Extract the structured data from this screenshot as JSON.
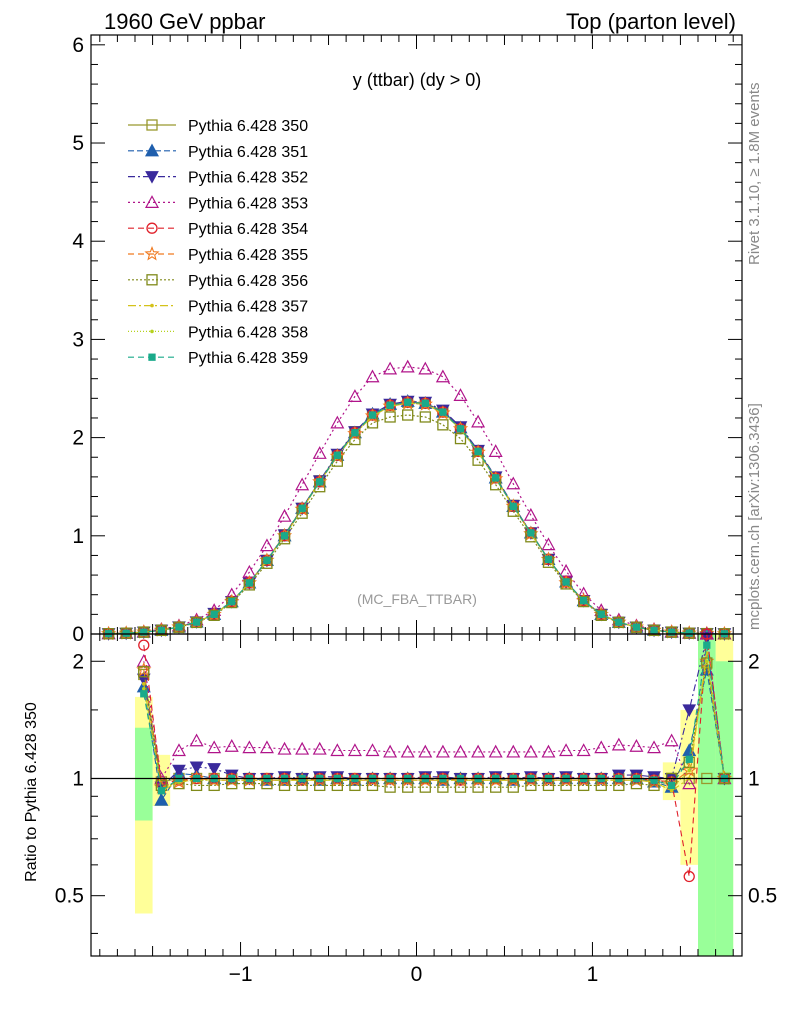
{
  "header": {
    "left": "1960 GeV ppbar",
    "right": "Top (parton level)"
  },
  "side_labels": {
    "rivet": "Rivet 3.1.10, ≥ 1.8M events",
    "mcplots": "mcplots.cern.ch [arXiv:1306.3436]"
  },
  "chart_data": [
    {
      "type": "line",
      "title": "y (ttbar) (dy > 0)",
      "watermark": "(MC_FBA_TTBAR)",
      "xlabel": "",
      "ylabel": "",
      "xlim": [
        -1.85,
        1.85
      ],
      "ylim": [
        0,
        6.1
      ],
      "grid": false,
      "legend_position": "top-left",
      "x_ticks": [
        -1,
        0,
        1
      ],
      "y_ticks": [
        0,
        1,
        2,
        3,
        4,
        5,
        6
      ],
      "x": [
        -1.75,
        -1.65,
        -1.55,
        -1.45,
        -1.35,
        -1.25,
        -1.15,
        -1.05,
        -0.95,
        -0.85,
        -0.75,
        -0.65,
        -0.55,
        -0.45,
        -0.35,
        -0.25,
        -0.15,
        -0.05,
        0.05,
        0.15,
        0.25,
        0.35,
        0.45,
        0.55,
        0.65,
        0.75,
        0.85,
        0.95,
        1.05,
        1.15,
        1.25,
        1.35,
        1.45,
        1.55,
        1.65,
        1.75
      ],
      "series": [
        {
          "name": "Pythia 6.428 350",
          "color": "#99992e",
          "marker": "square-open",
          "dash": "solid",
          "values": [
            0.003,
            0.008,
            0.02,
            0.04,
            0.07,
            0.12,
            0.2,
            0.33,
            0.52,
            0.75,
            1.01,
            1.28,
            1.56,
            1.82,
            2.06,
            2.23,
            2.33,
            2.36,
            2.35,
            2.27,
            2.1,
            1.86,
            1.59,
            1.31,
            1.03,
            0.76,
            0.53,
            0.34,
            0.2,
            0.12,
            0.07,
            0.04,
            0.02,
            0.008,
            0.004,
            0.002
          ]
        },
        {
          "name": "Pythia 6.428 351",
          "color": "#1f5fad",
          "marker": "triangle-up",
          "dash": "6,3",
          "values": [
            0.003,
            0.008,
            0.019,
            0.038,
            0.072,
            0.123,
            0.2,
            0.33,
            0.52,
            0.75,
            1.0,
            1.28,
            1.55,
            1.82,
            2.05,
            2.24,
            2.34,
            2.37,
            2.35,
            2.26,
            2.1,
            1.86,
            1.59,
            1.3,
            1.03,
            0.76,
            0.53,
            0.34,
            0.2,
            0.12,
            0.07,
            0.038,
            0.019,
            0.009,
            0.004,
            0.002
          ]
        },
        {
          "name": "Pythia 6.428 352",
          "color": "#3a2a9c",
          "marker": "triangle-down",
          "dash": "7,3,2,3",
          "values": [
            0.003,
            0.008,
            0.019,
            0.039,
            0.073,
            0.124,
            0.21,
            0.33,
            0.52,
            0.75,
            1.01,
            1.28,
            1.56,
            1.83,
            2.06,
            2.24,
            2.34,
            2.37,
            2.36,
            2.28,
            2.11,
            1.87,
            1.6,
            1.31,
            1.03,
            0.76,
            0.53,
            0.34,
            0.2,
            0.12,
            0.071,
            0.039,
            0.019,
            0.009,
            0.004,
            0.002
          ]
        },
        {
          "name": "Pythia 6.428 353",
          "color": "#b0148a",
          "marker": "triangle-up-open",
          "dash": "2,3",
          "values": [
            0.004,
            0.01,
            0.024,
            0.048,
            0.085,
            0.145,
            0.24,
            0.4,
            0.63,
            0.9,
            1.2,
            1.52,
            1.84,
            2.15,
            2.42,
            2.62,
            2.7,
            2.72,
            2.7,
            2.62,
            2.43,
            2.16,
            1.86,
            1.53,
            1.21,
            0.91,
            0.64,
            0.41,
            0.24,
            0.145,
            0.085,
            0.048,
            0.024,
            0.01,
            0.005,
            0.002
          ]
        },
        {
          "name": "Pythia 6.428 354",
          "color": "#e0202a",
          "marker": "circle-open",
          "dash": "6,4",
          "values": [
            0.003,
            0.008,
            0.019,
            0.038,
            0.071,
            0.121,
            0.2,
            0.33,
            0.52,
            0.75,
            1.0,
            1.28,
            1.55,
            1.82,
            2.05,
            2.23,
            2.33,
            2.36,
            2.35,
            2.26,
            2.09,
            1.86,
            1.59,
            1.3,
            1.03,
            0.76,
            0.53,
            0.34,
            0.2,
            0.12,
            0.07,
            0.038,
            0.019,
            0.009,
            0.004,
            0.002
          ]
        },
        {
          "name": "Pythia 6.428 355",
          "color": "#f07a20",
          "marker": "star-open",
          "dash": "6,4",
          "values": [
            0.003,
            0.008,
            0.019,
            0.038,
            0.071,
            0.121,
            0.2,
            0.33,
            0.52,
            0.75,
            1.0,
            1.27,
            1.55,
            1.81,
            2.04,
            2.22,
            2.32,
            2.35,
            2.34,
            2.25,
            2.09,
            1.85,
            1.58,
            1.3,
            1.02,
            0.76,
            0.52,
            0.34,
            0.2,
            0.12,
            0.07,
            0.038,
            0.019,
            0.009,
            0.004,
            0.002
          ]
        },
        {
          "name": "Pythia 6.428 356",
          "color": "#808a1a",
          "marker": "square-open",
          "dash": "2,2",
          "values": [
            0.003,
            0.008,
            0.019,
            0.037,
            0.069,
            0.118,
            0.19,
            0.32,
            0.5,
            0.72,
            0.97,
            1.23,
            1.5,
            1.76,
            1.98,
            2.15,
            2.21,
            2.23,
            2.21,
            2.13,
            1.99,
            1.77,
            1.52,
            1.25,
            0.99,
            0.73,
            0.51,
            0.33,
            0.19,
            0.118,
            0.069,
            0.037,
            0.019,
            0.008,
            0.004,
            0.002
          ]
        },
        {
          "name": "Pythia 6.428 357",
          "color": "#d4c21a",
          "marker": "dot",
          "dash": "8,3,2,3",
          "values": [
            0.003,
            0.008,
            0.019,
            0.038,
            0.071,
            0.121,
            0.2,
            0.33,
            0.52,
            0.75,
            1.0,
            1.27,
            1.55,
            1.81,
            2.04,
            2.22,
            2.32,
            2.35,
            2.34,
            2.25,
            2.09,
            1.85,
            1.58,
            1.3,
            1.02,
            0.76,
            0.52,
            0.34,
            0.2,
            0.12,
            0.07,
            0.038,
            0.019,
            0.009,
            0.004,
            0.002
          ]
        },
        {
          "name": "Pythia 6.428 358",
          "color": "#b6d21e",
          "marker": "dot",
          "dash": "1,2",
          "values": [
            0.003,
            0.008,
            0.019,
            0.038,
            0.071,
            0.121,
            0.2,
            0.33,
            0.52,
            0.75,
            1.0,
            1.27,
            1.55,
            1.81,
            2.04,
            2.22,
            2.32,
            2.35,
            2.34,
            2.25,
            2.09,
            1.85,
            1.58,
            1.3,
            1.02,
            0.76,
            0.52,
            0.34,
            0.2,
            0.12,
            0.07,
            0.038,
            0.019,
            0.009,
            0.004,
            0.002
          ]
        },
        {
          "name": "Pythia 6.428 359",
          "color": "#1aaa8a",
          "marker": "square",
          "dash": "6,4",
          "values": [
            0.003,
            0.008,
            0.019,
            0.038,
            0.071,
            0.121,
            0.2,
            0.33,
            0.52,
            0.75,
            1.0,
            1.28,
            1.55,
            1.82,
            2.05,
            2.23,
            2.33,
            2.36,
            2.35,
            2.26,
            2.09,
            1.86,
            1.59,
            1.3,
            1.03,
            0.76,
            0.53,
            0.34,
            0.2,
            0.12,
            0.07,
            0.038,
            0.019,
            0.009,
            0.004,
            0.002
          ]
        }
      ]
    },
    {
      "type": "line",
      "title": "",
      "ylabel": "Ratio to Pythia 6.428 350",
      "xlabel": "",
      "xlim": [
        -1.85,
        1.85
      ],
      "ylim": [
        0.35,
        2.35
      ],
      "grid": false,
      "reference_line": 1,
      "x_ticks": [
        -1,
        0,
        1
      ],
      "y_ticks": [
        0.5,
        1,
        2
      ],
      "x": [
        -1.55,
        -1.45,
        -1.35,
        -1.25,
        -1.15,
        -1.05,
        -0.95,
        -0.85,
        -0.75,
        -0.65,
        -0.55,
        -0.45,
        -0.35,
        -0.25,
        -0.15,
        -0.05,
        0.05,
        0.15,
        0.25,
        0.35,
        0.45,
        0.55,
        0.65,
        0.75,
        0.85,
        0.95,
        1.05,
        1.15,
        1.25,
        1.35,
        1.45,
        1.55,
        1.65,
        1.75
      ],
      "bands": [
        {
          "name": "yellow",
          "color": "#ffff99",
          "x_ranges": [
            [
              -1.6,
              -1.5
            ],
            [
              -1.5,
              -1.4
            ],
            [
              1.4,
              1.5
            ],
            [
              1.5,
              1.6
            ],
            [
              1.6,
              1.7
            ],
            [
              1.7,
              1.8
            ]
          ],
          "low": [
            0.45,
            0.85,
            0.88,
            0.6,
            0.35,
            0.35
          ],
          "high": [
            1.62,
            1.15,
            1.1,
            1.5,
            2.35,
            2.35
          ]
        },
        {
          "name": "green",
          "color": "#99ff99",
          "x_ranges": [
            [
              -1.6,
              -1.5
            ],
            [
              1.6,
              1.7
            ],
            [
              1.7,
              1.8
            ]
          ],
          "low": [
            0.78,
            0.35,
            0.35
          ],
          "high": [
            1.35,
            2.35,
            2.0
          ]
        }
      ],
      "series": [
        {
          "name": "Pythia 6.428 350",
          "color": "#99992e",
          "marker": "square-open",
          "dash": "solid",
          "values": [
            1.85,
            0.98,
            1.0,
            1.0,
            1.0,
            1.0,
            1.0,
            1.0,
            1.0,
            1.0,
            1.0,
            1.0,
            1.0,
            1.0,
            1.0,
            1.0,
            1.0,
            1.0,
            1.0,
            1.0,
            1.0,
            1.0,
            1.0,
            1.0,
            1.0,
            1.0,
            1.0,
            1.0,
            1.0,
            1.0,
            1.0,
            1.0,
            1.0,
            1.0
          ]
        },
        {
          "name": "Pythia 6.428 351",
          "color": "#1f5fad",
          "marker": "triangle-up",
          "dash": "6,3",
          "values": [
            1.72,
            0.88,
            1.03,
            1.02,
            1.0,
            1.0,
            1.0,
            0.99,
            0.99,
            1.0,
            0.99,
            1.0,
            0.99,
            1.0,
            1.0,
            1.0,
            1.0,
            0.99,
            1.0,
            1.0,
            1.0,
            0.99,
            1.0,
            1.0,
            1.0,
            1.0,
            1.0,
            1.0,
            1.0,
            0.98,
            0.95,
            1.18,
            1.9,
            1.0
          ]
        },
        {
          "name": "Pythia 6.428 352",
          "color": "#3a2a9c",
          "marker": "triangle-down",
          "dash": "7,3,2,3",
          "values": [
            1.8,
            0.95,
            1.05,
            1.07,
            1.06,
            1.02,
            1.0,
            1.0,
            1.01,
            1.0,
            1.01,
            1.01,
            1.0,
            1.0,
            1.0,
            1.0,
            1.01,
            1.01,
            1.0,
            1.0,
            1.01,
            1.0,
            1.01,
            1.0,
            1.01,
            1.0,
            1.0,
            1.02,
            1.02,
            1.01,
            1.0,
            1.5,
            2.3,
            1.0
          ]
        },
        {
          "name": "Pythia 6.428 353",
          "color": "#b0148a",
          "marker": "triangle-up-open",
          "dash": "2,3",
          "values": [
            2.0,
            1.0,
            1.18,
            1.25,
            1.2,
            1.21,
            1.2,
            1.2,
            1.19,
            1.19,
            1.19,
            1.18,
            1.18,
            1.18,
            1.17,
            1.17,
            1.17,
            1.17,
            1.17,
            1.17,
            1.17,
            1.17,
            1.17,
            1.17,
            1.18,
            1.18,
            1.2,
            1.22,
            1.21,
            1.2,
            1.25,
            0.97,
            2.35,
            1.0
          ]
        },
        {
          "name": "Pythia 6.428 354",
          "color": "#e0202a",
          "marker": "circle-open",
          "dash": "6,4",
          "values": [
            2.2,
            0.97,
            0.99,
            1.0,
            1.0,
            1.0,
            1.0,
            1.0,
            1.0,
            0.99,
            1.0,
            1.0,
            1.0,
            1.0,
            1.0,
            1.0,
            1.0,
            1.0,
            0.99,
            1.0,
            1.0,
            1.0,
            1.0,
            1.0,
            1.0,
            1.0,
            1.0,
            1.0,
            1.0,
            0.99,
            0.98,
            0.56,
            2.35,
            1.0
          ]
        },
        {
          "name": "Pythia 6.428 355",
          "color": "#f07a20",
          "marker": "star-open",
          "dash": "6,4",
          "values": [
            1.9,
            0.95,
            0.98,
            1.0,
            0.99,
            0.99,
            0.99,
            0.99,
            0.99,
            0.99,
            0.99,
            0.99,
            0.99,
            0.99,
            0.99,
            0.99,
            0.99,
            0.99,
            0.99,
            0.99,
            0.99,
            0.99,
            0.99,
            0.99,
            0.99,
            0.99,
            0.99,
            0.99,
            0.99,
            0.98,
            0.97,
            1.05,
            2.0,
            1.0
          ]
        },
        {
          "name": "Pythia 6.428 356",
          "color": "#808a1a",
          "marker": "square-open",
          "dash": "2,2",
          "values": [
            1.88,
            0.96,
            0.97,
            0.96,
            0.96,
            0.97,
            0.97,
            0.97,
            0.96,
            0.96,
            0.96,
            0.96,
            0.96,
            0.96,
            0.95,
            0.95,
            0.95,
            0.95,
            0.95,
            0.95,
            0.95,
            0.95,
            0.96,
            0.96,
            0.96,
            0.96,
            0.96,
            0.96,
            0.97,
            0.96,
            1.0,
            1.1,
            1.98,
            1.0
          ]
        },
        {
          "name": "Pythia 6.428 357",
          "color": "#d4c21a",
          "marker": "dot",
          "dash": "8,3,2,3",
          "values": [
            1.75,
            0.93,
            0.98,
            0.99,
            0.99,
            0.99,
            0.99,
            0.99,
            0.99,
            0.99,
            0.99,
            0.99,
            0.99,
            0.99,
            0.99,
            0.99,
            0.99,
            0.99,
            0.99,
            0.99,
            0.99,
            0.99,
            0.99,
            0.99,
            0.99,
            0.99,
            0.99,
            0.99,
            0.99,
            0.98,
            0.93,
            1.0,
            2.1,
            1.0
          ]
        },
        {
          "name": "Pythia 6.428 358",
          "color": "#b6d21e",
          "marker": "dot",
          "dash": "1,2",
          "values": [
            1.7,
            0.94,
            0.98,
            0.99,
            0.99,
            0.99,
            0.99,
            0.99,
            0.99,
            0.99,
            0.99,
            0.99,
            0.99,
            0.99,
            0.99,
            0.99,
            0.99,
            0.99,
            0.99,
            0.99,
            0.99,
            0.99,
            0.99,
            0.99,
            0.99,
            0.99,
            0.99,
            0.99,
            0.99,
            0.98,
            0.94,
            1.05,
            2.0,
            1.0
          ]
        },
        {
          "name": "Pythia 6.428 359",
          "color": "#1aaa8a",
          "marker": "square",
          "dash": "6,4",
          "values": [
            1.65,
            0.93,
            1.0,
            1.0,
            1.0,
            1.0,
            1.0,
            1.0,
            1.0,
            1.0,
            1.0,
            1.0,
            1.0,
            1.0,
            1.0,
            1.0,
            1.0,
            1.0,
            1.0,
            1.0,
            1.0,
            1.0,
            1.0,
            1.0,
            1.0,
            1.0,
            1.0,
            1.0,
            1.0,
            0.99,
            0.96,
            1.12,
            2.2,
            1.0
          ]
        }
      ]
    }
  ]
}
